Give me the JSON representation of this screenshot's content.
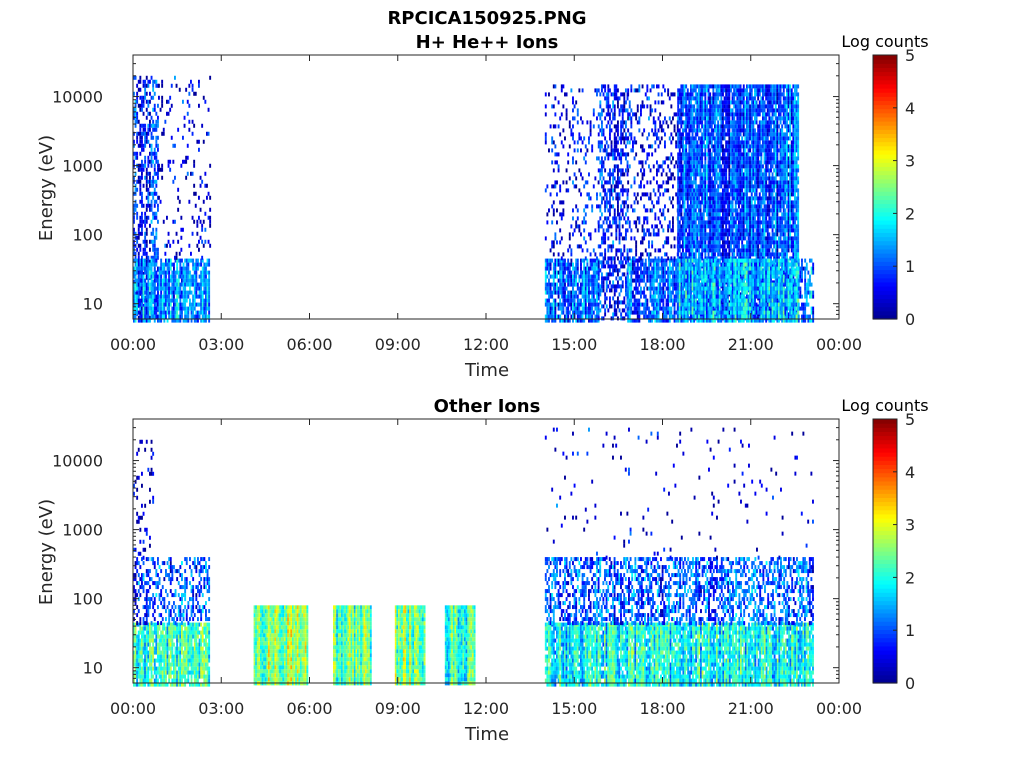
{
  "figure_title": "RPCICA150925.PNG",
  "colormap": [
    "#00008f",
    "#0000ff",
    "#0080ff",
    "#00ffff",
    "#80ff80",
    "#ffff00",
    "#ff8000",
    "#ff0000",
    "#800000"
  ],
  "chart_data": [
    {
      "type": "heatmap",
      "title": "H+ He++ Ions",
      "xlabel": "Time",
      "ylabel": "Energy (eV)",
      "yscale": "log",
      "x_range_hours": [
        0,
        24
      ],
      "x_ticks": [
        "00:00",
        "03:00",
        "06:00",
        "09:00",
        "12:00",
        "15:00",
        "18:00",
        "21:00",
        "00:00"
      ],
      "y_range": [
        6,
        40000
      ],
      "y_ticks": [
        "10",
        "100",
        "1000",
        "10000"
      ],
      "colorbar": {
        "label": "Log counts",
        "range": [
          0,
          5
        ],
        "ticks": [
          "0",
          "1",
          "2",
          "3",
          "4",
          "5"
        ]
      },
      "data_gaps_hours": [
        [
          2.6,
          14.0
        ],
        [
          23.1,
          24.0
        ]
      ],
      "regions": [
        {
          "t": [
            0.0,
            0.85
          ],
          "e": [
            6,
            20000
          ],
          "level": 0.7,
          "density": 0.5
        },
        {
          "t": [
            0.0,
            2.6
          ],
          "e": [
            6,
            45
          ],
          "level": 1.3,
          "density": 0.85
        },
        {
          "t": [
            0.85,
            2.6
          ],
          "e": [
            45,
            20000
          ],
          "level": 0.4,
          "density": 0.1
        },
        {
          "t": [
            14.0,
            15.8
          ],
          "e": [
            6,
            45
          ],
          "level": 1.1,
          "density": 0.8
        },
        {
          "t": [
            14.0,
            15.8
          ],
          "e": [
            45,
            15000
          ],
          "level": 0.5,
          "density": 0.15
        },
        {
          "t": [
            15.8,
            16.8
          ],
          "e": [
            6,
            15000
          ],
          "level": 0.8,
          "density": 0.5
        },
        {
          "t": [
            16.8,
            18.5
          ],
          "e": [
            6,
            45
          ],
          "level": 1.1,
          "density": 0.8
        },
        {
          "t": [
            16.8,
            18.5
          ],
          "e": [
            45,
            15000
          ],
          "level": 0.5,
          "density": 0.25
        },
        {
          "t": [
            18.5,
            22.6
          ],
          "e": [
            6,
            15000
          ],
          "level": 1.0,
          "density": 0.9
        },
        {
          "t": [
            18.5,
            22.6
          ],
          "e": [
            6,
            45
          ],
          "level": 1.6,
          "density": 0.85
        },
        {
          "t": [
            22.6,
            23.1
          ],
          "e": [
            6,
            45
          ],
          "level": 1.2,
          "density": 0.6
        }
      ]
    },
    {
      "type": "heatmap",
      "title": "Other Ions",
      "xlabel": "Time",
      "ylabel": "Energy (eV)",
      "yscale": "log",
      "x_range_hours": [
        0,
        24
      ],
      "x_ticks": [
        "00:00",
        "03:00",
        "06:00",
        "09:00",
        "12:00",
        "15:00",
        "18:00",
        "21:00",
        "00:00"
      ],
      "y_range": [
        6,
        40000
      ],
      "y_ticks": [
        "10",
        "100",
        "1000",
        "10000"
      ],
      "colorbar": {
        "label": "Log counts",
        "range": [
          0,
          5
        ],
        "ticks": [
          "0",
          "1",
          "2",
          "3",
          "4",
          "5"
        ]
      },
      "data_gaps_hours": [
        [
          2.6,
          4.1
        ],
        [
          5.9,
          6.8
        ],
        [
          8.1,
          8.9
        ],
        [
          9.9,
          10.6
        ],
        [
          11.6,
          14.0
        ],
        [
          23.1,
          24.0
        ]
      ],
      "regions": [
        {
          "t": [
            0.0,
            2.6
          ],
          "e": [
            6,
            45
          ],
          "level": 2.1,
          "density": 0.9
        },
        {
          "t": [
            0.0,
            2.6
          ],
          "e": [
            45,
            400
          ],
          "level": 1.0,
          "density": 0.4
        },
        {
          "t": [
            0.0,
            0.7
          ],
          "e": [
            400,
            20000
          ],
          "level": 0.5,
          "density": 0.15
        },
        {
          "t": [
            4.1,
            5.9
          ],
          "e": [
            6,
            80
          ],
          "level": 2.6,
          "density": 1.0
        },
        {
          "t": [
            6.8,
            8.1
          ],
          "e": [
            6,
            80
          ],
          "level": 2.3,
          "density": 1.0
        },
        {
          "t": [
            8.9,
            9.9
          ],
          "e": [
            6,
            80
          ],
          "level": 2.5,
          "density": 1.0
        },
        {
          "t": [
            10.6,
            11.6
          ],
          "e": [
            6,
            80
          ],
          "level": 2.2,
          "density": 1.0
        },
        {
          "t": [
            14.0,
            23.1
          ],
          "e": [
            6,
            45
          ],
          "level": 1.9,
          "density": 0.9
        },
        {
          "t": [
            14.0,
            23.1
          ],
          "e": [
            45,
            400
          ],
          "level": 1.1,
          "density": 0.5
        },
        {
          "t": [
            14.0,
            23.1
          ],
          "e": [
            400,
            30000
          ],
          "level": 0.4,
          "density": 0.02
        }
      ]
    }
  ]
}
